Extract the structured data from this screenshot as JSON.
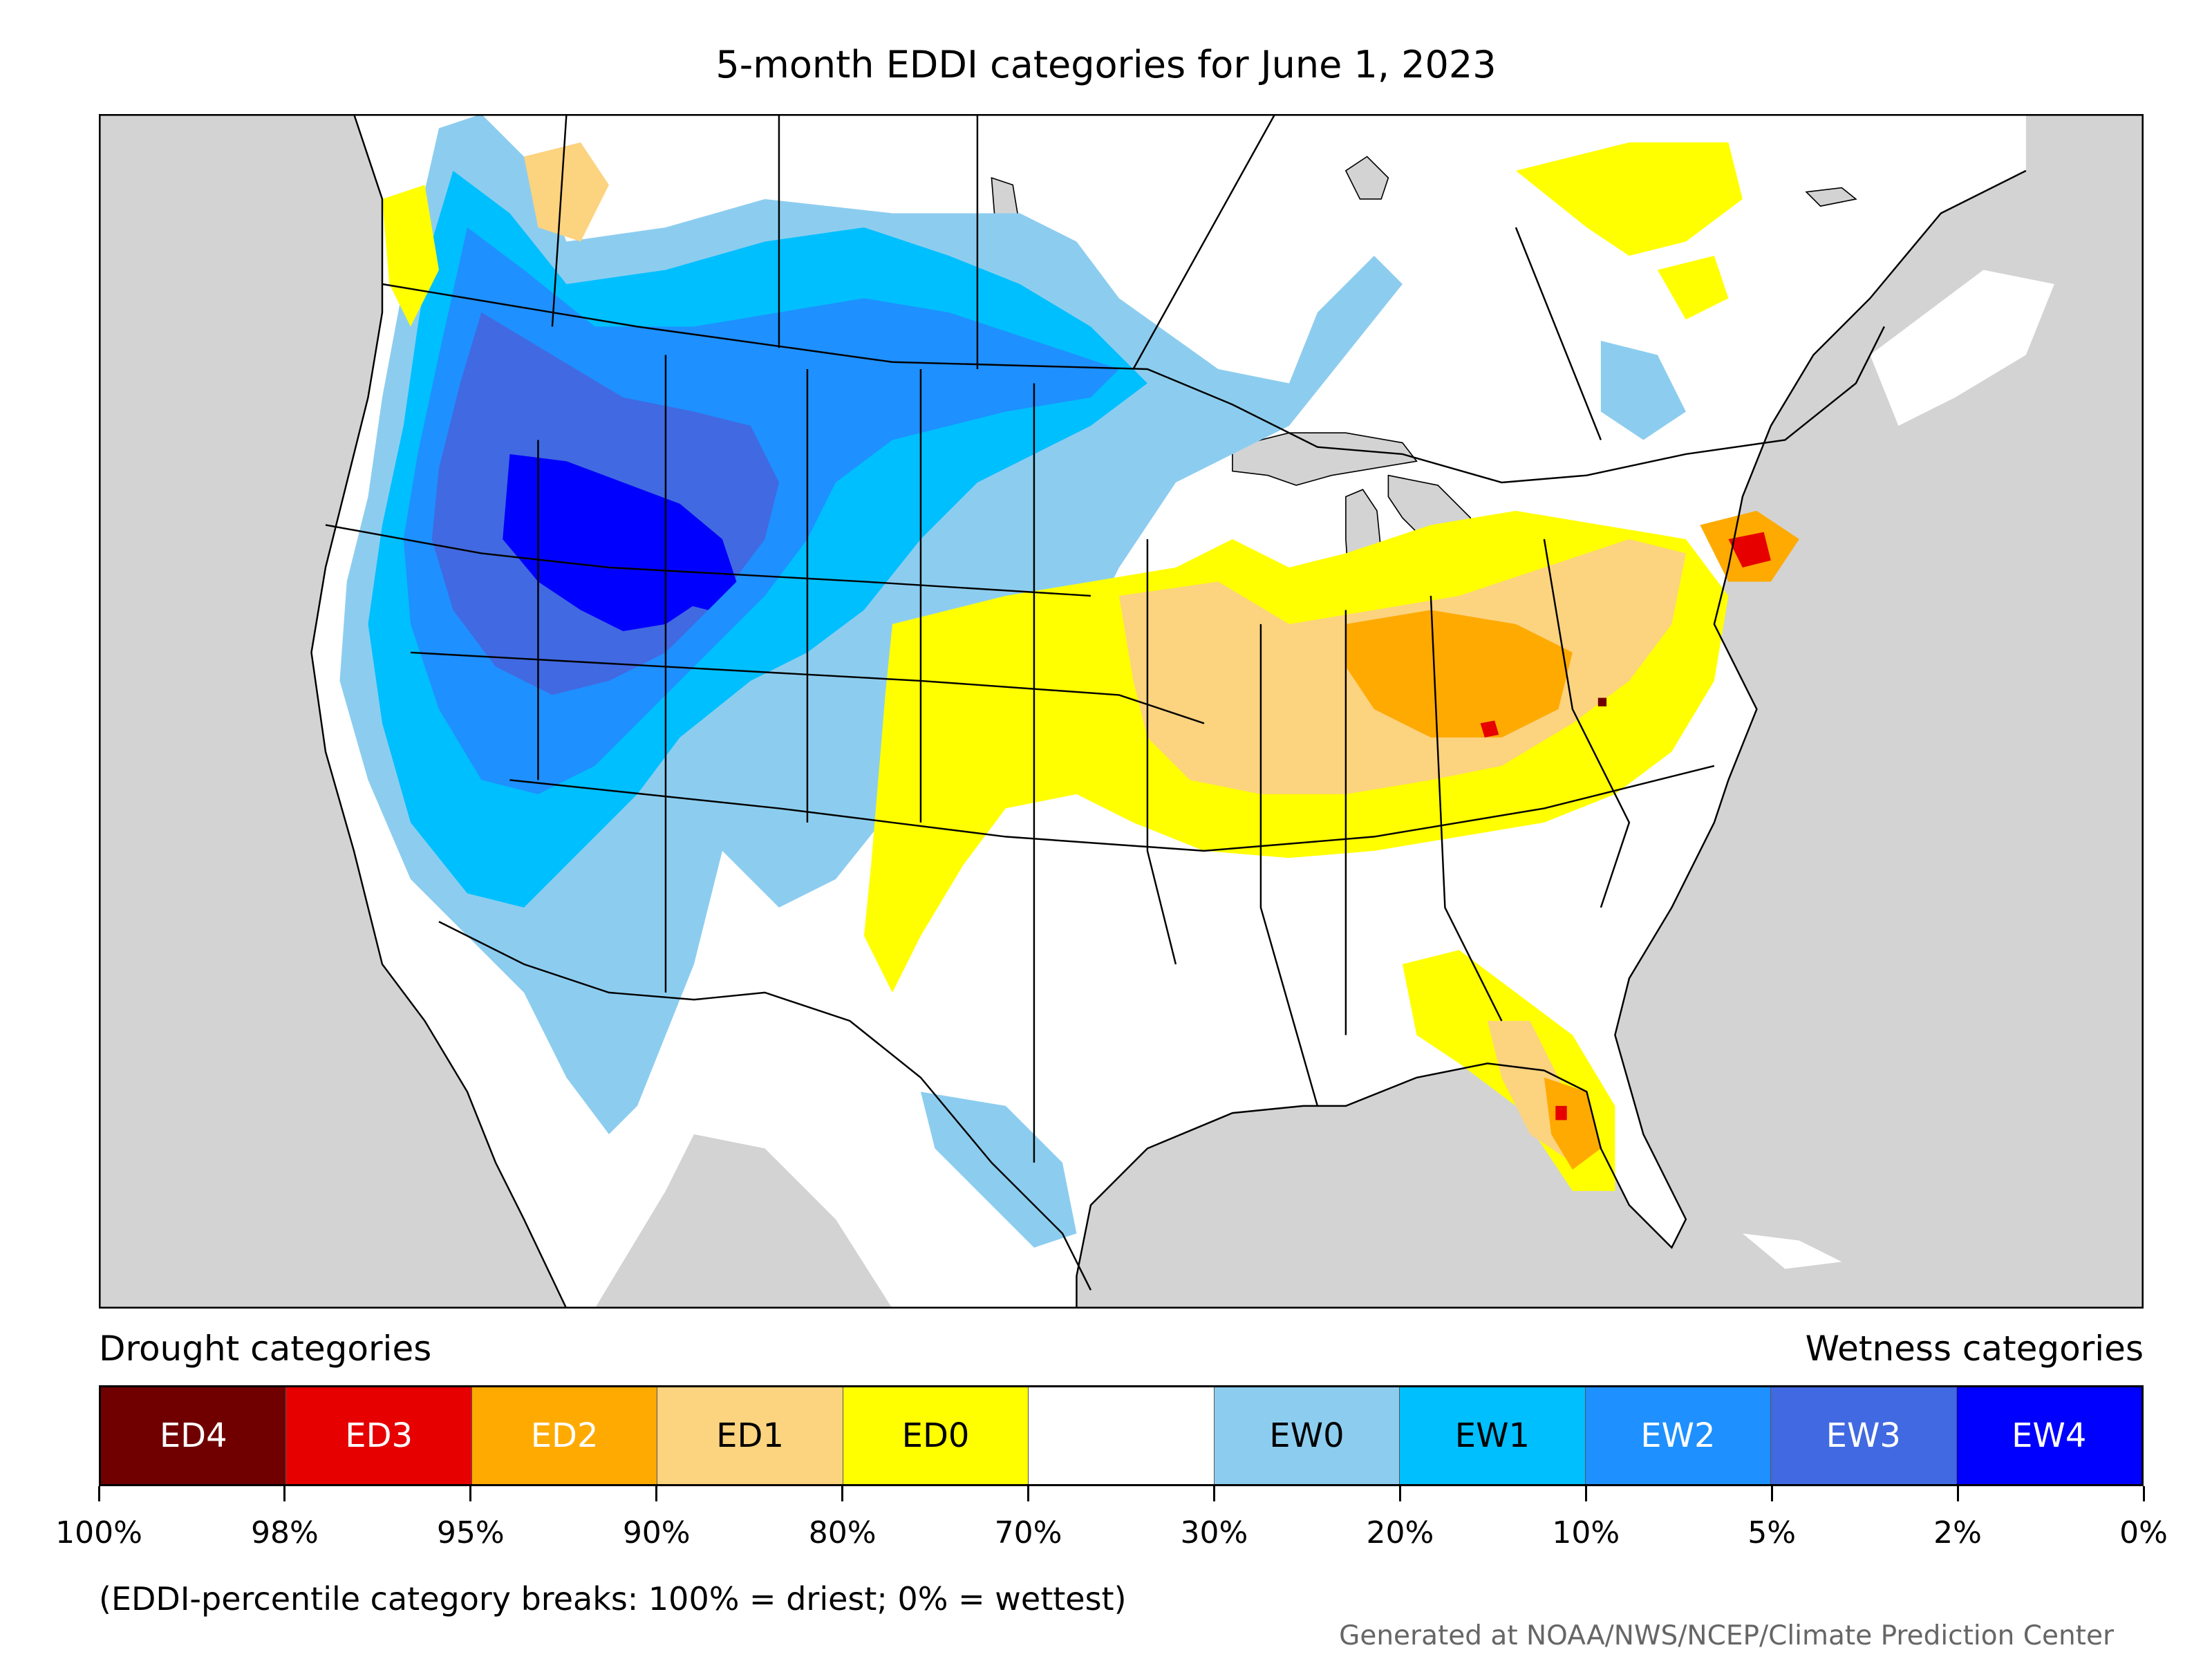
{
  "title": "5-month EDDI categories for June 1, 2023",
  "legend": {
    "drought_heading": "Drought categories",
    "wetness_heading": "Wetness categories",
    "categories": [
      {
        "label": "ED4",
        "color": "#700000",
        "text_color": "#ffffff"
      },
      {
        "label": "ED3",
        "color": "#e60000",
        "text_color": "#ffffff"
      },
      {
        "label": "ED2",
        "color": "#ffaa00",
        "text_color": "#ffffff"
      },
      {
        "label": "ED1",
        "color": "#fcd37f",
        "text_color": "#000000"
      },
      {
        "label": "ED0",
        "color": "#ffff00",
        "text_color": "#000000"
      },
      {
        "label": "",
        "color": "#ffffff",
        "text_color": "#000000"
      },
      {
        "label": "EW0",
        "color": "#8ccdef",
        "text_color": "#000000"
      },
      {
        "label": "EW1",
        "color": "#00bfff",
        "text_color": "#000000"
      },
      {
        "label": "EW2",
        "color": "#1e90ff",
        "text_color": "#ffffff"
      },
      {
        "label": "EW3",
        "color": "#4169e1",
        "text_color": "#ffffff"
      },
      {
        "label": "EW4",
        "color": "#0000ff",
        "text_color": "#ffffff"
      }
    ],
    "breaks": [
      "100%",
      "98%",
      "95%",
      "90%",
      "80%",
      "70%",
      "30%",
      "20%",
      "10%",
      "5%",
      "2%",
      "0%"
    ]
  },
  "note": "(EDDI-percentile category breaks: 100% = driest; 0% = wettest)",
  "credit": "Generated at NOAA/NWS/NCEP/Climate Prediction Center",
  "map": {
    "background_color": "#d3d3d3",
    "land_color": "#ffffff",
    "border_color": "#000000"
  }
}
